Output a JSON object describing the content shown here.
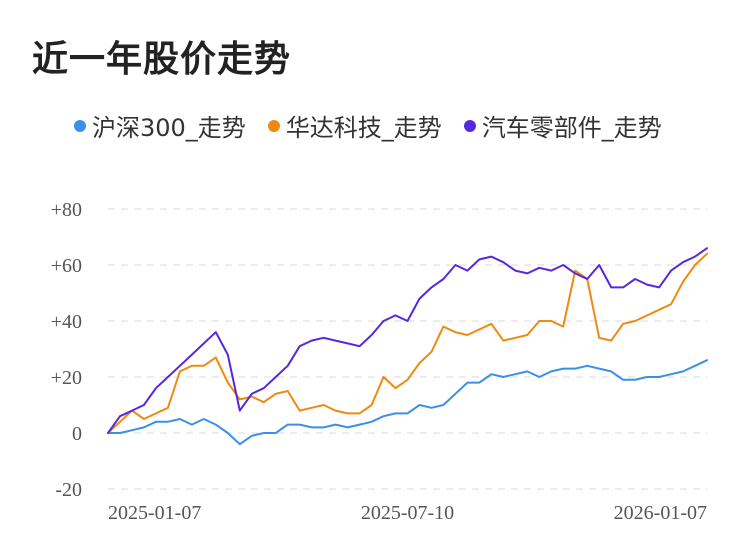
{
  "title": "近一年股价走势",
  "chart_data": {
    "type": "line",
    "title": "近一年股价走势",
    "ylim": [
      -20,
      80
    ],
    "yticks": [
      80,
      60,
      40,
      20,
      0,
      -20
    ],
    "ytick_labels": [
      "+80",
      "+60",
      "+40",
      "+20",
      "0",
      "-20"
    ],
    "xtick_labels": [
      "2025-01-07",
      "2025-07-10",
      "2026-01-07"
    ],
    "xlabel": "",
    "ylabel": "",
    "grid": true,
    "legend_position": "top",
    "x": [
      0,
      2,
      4,
      6,
      8,
      10,
      12,
      14,
      16,
      18,
      20,
      22,
      24,
      26,
      28,
      30,
      32,
      34,
      36,
      38,
      40,
      42,
      44,
      46,
      48,
      50,
      52,
      54,
      56,
      58,
      60,
      62,
      64,
      66,
      68,
      70,
      72,
      74,
      76,
      78,
      80,
      82,
      84,
      86,
      88,
      90,
      92,
      94,
      96,
      98,
      100
    ],
    "series": [
      {
        "name": "沪深300_走势",
        "color": "#3b8fe8",
        "values": [
          0,
          0,
          1,
          2,
          4,
          4,
          5,
          3,
          5,
          3,
          0,
          -4,
          -1,
          0,
          0,
          3,
          3,
          2,
          2,
          3,
          2,
          3,
          4,
          6,
          7,
          7,
          10,
          9,
          10,
          14,
          18,
          18,
          21,
          20,
          21,
          22,
          20,
          22,
          23,
          23,
          24,
          23,
          22,
          19,
          19,
          20,
          20,
          21,
          22,
          24,
          26
        ]
      },
      {
        "name": "华达科技_走势",
        "color": "#ef8a10",
        "values": [
          0,
          4,
          8,
          5,
          7,
          9,
          22,
          24,
          24,
          27,
          18,
          12,
          13,
          11,
          14,
          15,
          8,
          9,
          10,
          8,
          7,
          7,
          10,
          20,
          16,
          19,
          25,
          29,
          38,
          36,
          35,
          37,
          39,
          33,
          34,
          35,
          40,
          40,
          38,
          58,
          55,
          34,
          33,
          39,
          40,
          42,
          44,
          46,
          54,
          60,
          64
        ]
      },
      {
        "name": "汽车零部件_走势",
        "color": "#5528e0",
        "values": [
          0,
          6,
          8,
          10,
          16,
          20,
          24,
          28,
          32,
          36,
          28,
          8,
          14,
          16,
          20,
          24,
          31,
          33,
          34,
          33,
          32,
          31,
          35,
          40,
          42,
          40,
          48,
          52,
          55,
          60,
          58,
          62,
          63,
          61,
          58,
          57,
          59,
          58,
          60,
          57,
          55,
          60,
          52,
          52,
          55,
          53,
          52,
          58,
          61,
          63,
          66
        ]
      }
    ]
  }
}
